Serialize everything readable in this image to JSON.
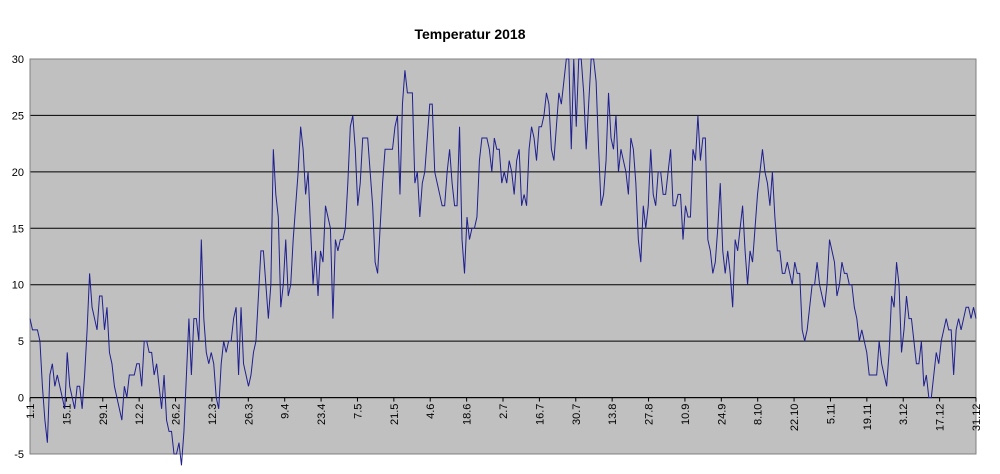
{
  "chart_data": {
    "type": "line",
    "title": "Temperatur 2018",
    "xlabel": "",
    "ylabel": "",
    "ylim": [
      -5,
      30
    ],
    "yticks": [
      -5,
      0,
      5,
      10,
      15,
      20,
      25,
      30
    ],
    "grid": true,
    "legend": "none",
    "plot_background": "#c0c0c0",
    "series_color": "#1f1f8f",
    "x_tick_labels": [
      "1.1",
      "15.1",
      "29.1",
      "12.2",
      "26.2",
      "12.3",
      "26.3",
      "9.4",
      "23.4",
      "7.5",
      "21.5",
      "4.6",
      "18.6",
      "2.7",
      "16.7",
      "30.7",
      "13.8",
      "27.8",
      "10.9",
      "24.9",
      "8.10",
      "22.10",
      "5.11",
      "19.11",
      "3.12",
      "17.12",
      "31.12"
    ],
    "series": [
      {
        "values": [
          7,
          6,
          6,
          6,
          5,
          1,
          -2,
          -4,
          2,
          3,
          1,
          2,
          1,
          0,
          -1,
          4,
          1,
          0,
          -1,
          1,
          1,
          -1,
          2,
          6,
          11,
          8,
          7,
          6,
          9,
          9,
          6,
          8,
          4,
          3,
          1,
          0,
          -1,
          -2,
          1,
          0,
          2,
          2,
          2,
          3,
          3,
          1,
          5,
          5,
          4,
          4,
          2,
          3,
          1,
          -1,
          2,
          -2,
          -3,
          -3,
          -5,
          -5,
          -4,
          -6,
          -3,
          2,
          7,
          2,
          7,
          7,
          5,
          14,
          7,
          4,
          3,
          4,
          3,
          0,
          -1,
          3,
          5,
          4,
          5,
          5,
          7,
          8,
          2,
          8,
          3,
          2,
          1,
          2,
          4,
          5,
          9,
          13,
          13,
          10,
          7,
          10,
          22,
          18,
          16,
          8,
          10,
          14,
          9,
          10,
          14,
          17,
          20,
          24,
          22,
          18,
          20,
          15,
          10,
          13,
          9,
          13,
          12,
          17,
          16,
          15,
          7,
          14,
          13,
          14,
          14,
          15,
          19,
          24,
          25,
          22,
          17,
          19,
          23,
          23,
          23,
          20,
          17,
          12,
          11,
          15,
          19,
          22,
          22,
          22,
          22,
          24,
          25,
          18,
          26,
          29,
          27,
          27,
          27,
          19,
          20,
          16,
          19,
          20,
          23,
          26,
          26,
          20,
          19,
          18,
          17,
          17,
          20,
          22,
          19,
          17,
          17,
          24,
          14,
          11,
          16,
          14,
          15,
          15,
          16,
          21,
          23,
          23,
          23,
          22,
          20,
          23,
          22,
          22,
          19,
          20,
          19,
          21,
          20,
          18,
          21,
          22,
          17,
          18,
          17,
          22,
          24,
          23,
          21,
          24,
          24,
          25,
          27,
          26,
          22,
          21,
          24,
          27,
          26,
          28,
          30,
          30,
          22,
          30,
          24,
          30,
          30,
          27,
          22,
          26,
          30,
          30,
          28,
          22,
          17,
          18,
          21,
          27,
          23,
          22,
          25,
          20,
          22,
          21,
          20,
          18,
          23,
          22,
          19,
          14,
          12,
          17,
          15,
          17,
          22,
          18,
          17,
          20,
          20,
          18,
          18,
          20,
          22,
          17,
          17,
          18,
          18,
          14,
          17,
          16,
          16,
          22,
          21,
          25,
          21,
          23,
          23,
          14,
          13,
          11,
          12,
          15,
          19,
          13,
          11,
          13,
          11,
          8,
          14,
          13,
          15,
          17,
          13,
          10,
          13,
          12,
          15,
          18,
          20,
          22,
          20,
          19,
          17,
          20,
          16,
          13,
          13,
          11,
          11,
          12,
          11,
          10,
          12,
          11,
          11,
          6,
          5,
          6,
          8,
          10,
          10,
          12,
          10,
          9,
          8,
          10,
          14,
          13,
          12,
          9,
          10,
          12,
          11,
          11,
          10,
          10,
          8,
          7,
          5,
          6,
          5,
          4,
          2,
          2,
          2,
          2,
          5,
          3,
          2,
          1,
          4,
          9,
          8,
          12,
          10,
          4,
          6,
          9,
          7,
          7,
          5,
          3,
          3,
          5,
          1,
          2,
          0,
          0,
          2,
          4,
          3,
          5,
          6,
          7,
          6,
          6,
          2,
          6,
          7,
          6,
          7,
          8,
          8,
          7,
          8,
          7
        ]
      }
    ]
  }
}
